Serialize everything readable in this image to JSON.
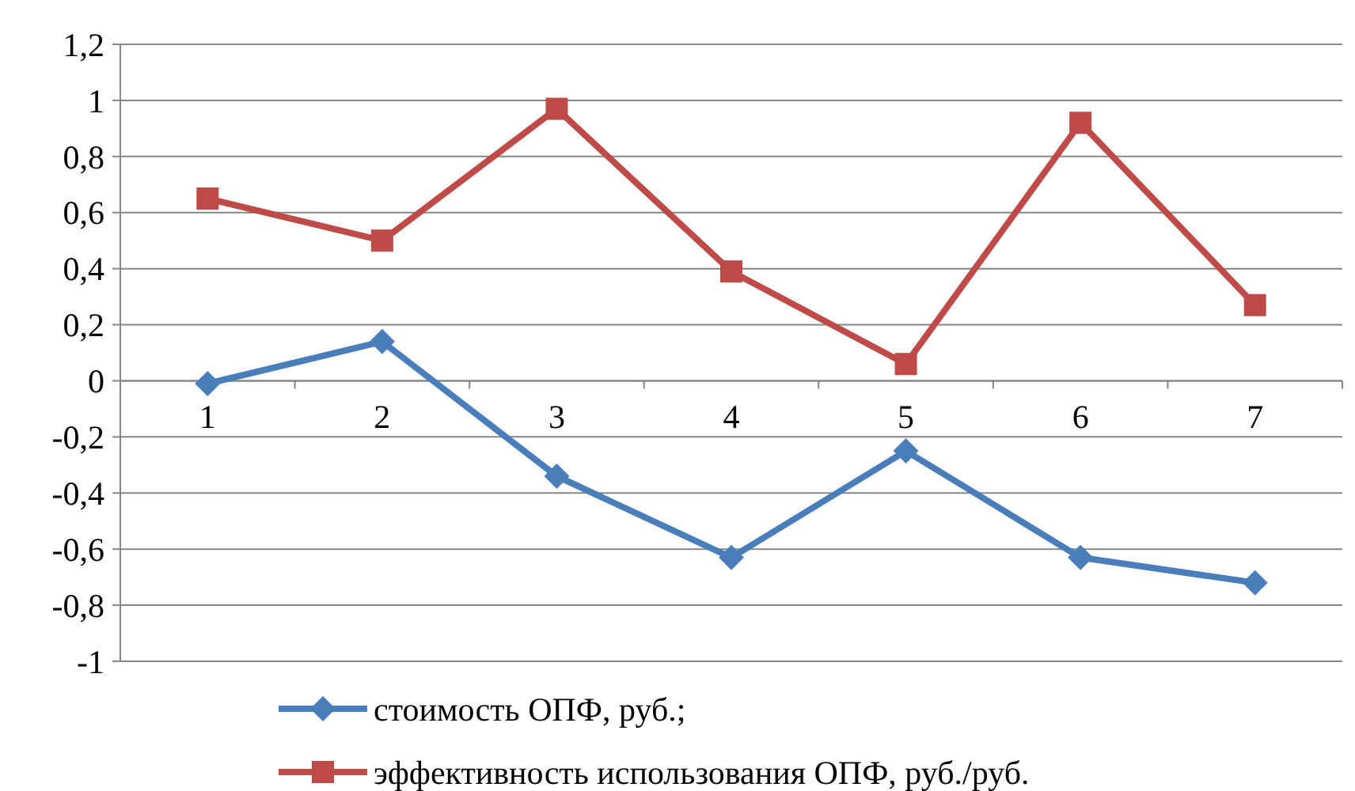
{
  "chart_data": {
    "type": "line",
    "categories": [
      "1",
      "2",
      "3",
      "4",
      "5",
      "6",
      "7"
    ],
    "series": [
      {
        "name": "стоимость ОПФ, руб.;",
        "color": "#4a7ebb",
        "marker": "diamond",
        "values": [
          -0.01,
          0.14,
          -0.34,
          -0.63,
          -0.25,
          -0.63,
          -0.72
        ]
      },
      {
        "name": "эффективность использования ОПФ, руб./руб.",
        "color": "#be4b48",
        "marker": "square",
        "values": [
          0.65,
          0.5,
          0.97,
          0.39,
          0.06,
          0.92,
          0.27
        ]
      }
    ],
    "ylim": [
      -1,
      1.2
    ],
    "yticks": [
      {
        "value": -1,
        "label": "-1"
      },
      {
        "value": -0.8,
        "label": "-0,8"
      },
      {
        "value": -0.6,
        "label": "-0,6"
      },
      {
        "value": -0.4,
        "label": "-0,4"
      },
      {
        "value": -0.2,
        "label": "-0,2"
      },
      {
        "value": 0,
        "label": "0"
      },
      {
        "value": 0.2,
        "label": "0,2"
      },
      {
        "value": 0.4,
        "label": "0,4"
      },
      {
        "value": 0.6,
        "label": "0,6"
      },
      {
        "value": 0.8,
        "label": "0,8"
      },
      {
        "value": 1,
        "label": "1"
      },
      {
        "value": 1.2,
        "label": "1,2"
      }
    ],
    "grid": "y",
    "legend": "bottom",
    "line_style": "solid"
  }
}
